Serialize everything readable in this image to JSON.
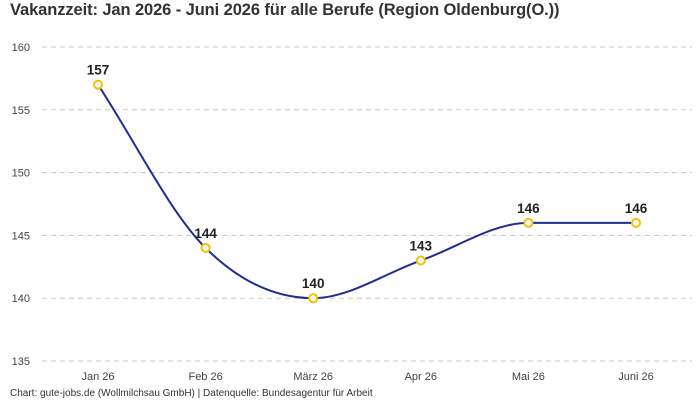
{
  "title": "Vakanzzeit: Jan 2026 - Juni 2026 für alle Berufe (Region Oldenburg(O.))",
  "footer": "Chart: gute-jobs.de (Wollmilchsau GmbH) | Datenquelle: Bundesagentur für Arbeit",
  "chart_data": {
    "type": "line",
    "title": "Vakanzzeit: Jan 2026 - Juni 2026 für alle Berufe (Region Oldenburg(O.))",
    "xlabel": "",
    "ylabel": "",
    "categories": [
      "Jan 26",
      "Feb 26",
      "März 26",
      "Apr 26",
      "Mai 26",
      "Juni 26"
    ],
    "series": [
      {
        "values": [
          157,
          144,
          140,
          143,
          146,
          146
        ]
      }
    ],
    "ylim": [
      135,
      160
    ],
    "yticks": [
      135,
      140,
      145,
      150,
      155,
      160
    ],
    "grid": true,
    "grid_style": "dashed",
    "line_color": "#1f2f8c",
    "marker_color": "#f2c200",
    "data_labels": true
  }
}
